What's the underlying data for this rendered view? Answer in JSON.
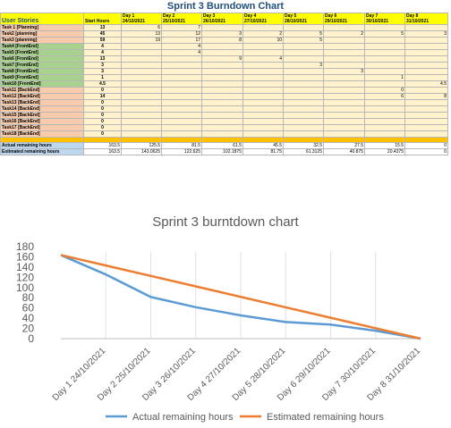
{
  "sheet": {
    "title": "Sprint 3 Burndown Chart",
    "header": {
      "user_stories": "User Stories",
      "start_hours": "Start Hours",
      "days": [
        {
          "day": "Day 1",
          "date": "24/10/2021"
        },
        {
          "day": "Day 2",
          "date": "25/10/2021"
        },
        {
          "day": "Day 3",
          "date": "26/10/2021"
        },
        {
          "day": "Day 4",
          "date": "27/10/2021"
        },
        {
          "day": "Day 5",
          "date": "28/10/2021"
        },
        {
          "day": "Day 6",
          "date": "29/10/2021"
        },
        {
          "day": "Day 7",
          "date": "30/10/2021"
        },
        {
          "day": "Day 8",
          "date": "31/10/2021"
        }
      ]
    },
    "rows": [
      {
        "name": "Task 1  [Planning]",
        "cat": "plan",
        "start": "13",
        "d": [
          "6",
          "7",
          "",
          "",
          "",
          "",
          "",
          ""
        ]
      },
      {
        "name": "Task2  [planning]",
        "cat": "plan",
        "start": "45",
        "d": [
          "13",
          "12",
          "3",
          "2",
          "5",
          "2",
          "5",
          "3"
        ]
      },
      {
        "name": "Task3  [planning]",
        "cat": "plan",
        "start": "59",
        "d": [
          "19",
          "17",
          "8",
          "10",
          "5",
          "",
          "",
          ""
        ]
      },
      {
        "name": "Task4  [FrontEnd]",
        "cat": "front",
        "start": "4",
        "d": [
          "",
          "4",
          "",
          "",
          "",
          "",
          "",
          ""
        ]
      },
      {
        "name": "Task5  [FrontEnd]",
        "cat": "front",
        "start": "4",
        "d": [
          "",
          "4",
          "",
          "",
          "",
          "",
          "",
          ""
        ]
      },
      {
        "name": "Task6  [FrontEnd]",
        "cat": "front",
        "start": "13",
        "d": [
          "",
          "",
          "9",
          "4",
          "",
          "",
          "",
          ""
        ]
      },
      {
        "name": "Task7  [FrontEnd]",
        "cat": "front",
        "start": "3",
        "d": [
          "",
          "",
          "",
          "",
          "3",
          "",
          "",
          ""
        ]
      },
      {
        "name": "Task8  [FrontEnd]",
        "cat": "front",
        "start": "3",
        "d": [
          "",
          "",
          "",
          "",
          "",
          "3",
          "",
          ""
        ]
      },
      {
        "name": "Task9  [FrontEnd]",
        "cat": "front",
        "start": "1",
        "d": [
          "",
          "",
          "",
          "",
          "",
          "",
          "1",
          ""
        ]
      },
      {
        "name": "Task10  [FrontEnd]",
        "cat": "front",
        "start": "4.5",
        "d": [
          "",
          "",
          "",
          "",
          "",
          "",
          "",
          "4.5"
        ]
      },
      {
        "name": "Task11  [BackEnd]",
        "cat": "back",
        "start": "0",
        "d": [
          "",
          "",
          "",
          "",
          "",
          "",
          "0",
          ""
        ]
      },
      {
        "name": "Task12  [BackEnd]",
        "cat": "back",
        "start": "14",
        "d": [
          "",
          "",
          "",
          "",
          "",
          "",
          "6",
          "8"
        ]
      },
      {
        "name": "Task13  [BackEnd]",
        "cat": "back",
        "start": "0",
        "d": [
          "",
          "",
          "",
          "",
          "",
          "",
          "",
          ""
        ]
      },
      {
        "name": "Task14  [BackEnd]",
        "cat": "back",
        "start": "0",
        "d": [
          "",
          "",
          "",
          "",
          "",
          "",
          "",
          ""
        ]
      },
      {
        "name": "Task15  [BackEnd]",
        "cat": "back",
        "start": "0",
        "d": [
          "",
          "",
          "",
          "",
          "",
          "",
          "",
          ""
        ]
      },
      {
        "name": "Task16  [BackEnd]",
        "cat": "back",
        "start": "0",
        "d": [
          "",
          "",
          "",
          "",
          "",
          "",
          "",
          ""
        ]
      },
      {
        "name": "Task17  [BackEnd]",
        "cat": "back",
        "start": "0",
        "d": [
          "",
          "",
          "",
          "",
          "",
          "",
          "",
          ""
        ]
      },
      {
        "name": "Task18  [BackEnd]",
        "cat": "back",
        "start": "0",
        "d": [
          "",
          "",
          "",
          "",
          "",
          "",
          "",
          ""
        ]
      }
    ],
    "actual_label": "Actual remaining hours",
    "actual_values": [
      "163.5",
      "125.5",
      "81.5",
      "61.5",
      "45.5",
      "32.5",
      "27.5",
      "15.5",
      "0"
    ],
    "estimated_label": "Estimated remaining hours",
    "estimated_values": [
      "163.5",
      "143.0625",
      "122.625",
      "102.1875",
      "81.75",
      "61.3125",
      "40.875",
      "20.4375",
      "0"
    ]
  },
  "chart_data": {
    "type": "line",
    "title": "Sprint 3 burntdown chart",
    "categories": [
      "",
      "Day 1 24/10/2021",
      "Day 2 25/10/2021",
      "Day 3 26/10/2021",
      "Day 4 27/10/2021",
      "Day 5 28/10/2021",
      "Day 6 29/10/2021",
      "Day 7 30/10/2021",
      "Day 8 31/10/2021"
    ],
    "series": [
      {
        "name": "Actual remaining hours",
        "color": "#5b9bd5",
        "values": [
          163.5,
          125.5,
          81.5,
          61.5,
          45.5,
          32.5,
          27.5,
          15.5,
          0
        ]
      },
      {
        "name": "Estimated remaining hours",
        "color": "#ed7d31",
        "values": [
          163.5,
          143.0625,
          122.625,
          102.1875,
          81.75,
          61.3125,
          40.875,
          20.4375,
          0
        ]
      }
    ],
    "ylim": [
      0,
      180
    ],
    "yticks": [
      0,
      20,
      40,
      60,
      80,
      100,
      120,
      140,
      160,
      180
    ],
    "grid": false,
    "legend_position": "bottom"
  }
}
